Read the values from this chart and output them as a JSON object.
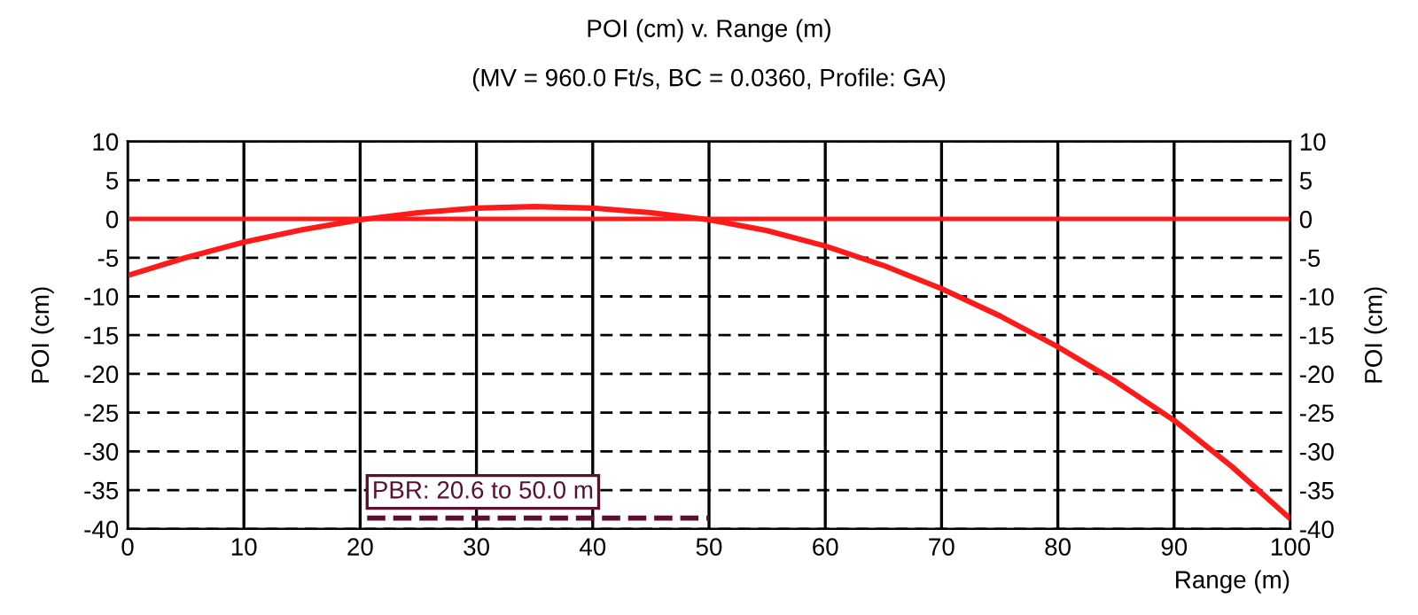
{
  "chart_data": {
    "type": "line",
    "title": "POI (cm) v. Range (m)",
    "subtitle": "(MV = 960.0 Ft/s, BC = 0.0360, Profile: GA)",
    "xlabel": "Range (m)",
    "ylabel": "POI (cm)",
    "y2label": "POI (cm)",
    "x": [
      0,
      5,
      10,
      15,
      20,
      25,
      30,
      35,
      40,
      45,
      50,
      55,
      60,
      65,
      70,
      75,
      80,
      85,
      90,
      95,
      100
    ],
    "series": [
      {
        "color": "#ff1a1a",
        "values": [
          -7.3,
          -5.0,
          -3.0,
          -1.4,
          -0.1,
          0.8,
          1.4,
          1.6,
          1.4,
          0.8,
          -0.1,
          -1.5,
          -3.5,
          -6.0,
          -9.0,
          -12.5,
          -16.5,
          -21.0,
          -26.0,
          -32.0,
          -38.7
        ]
      },
      {
        "color": "#5a1030",
        "x": [
          20.6,
          50.0
        ],
        "values": [
          -38.6,
          -38.6
        ],
        "line_style": "dashed"
      }
    ],
    "ref_lines": [
      {
        "axis": "y",
        "value": 0,
        "color": "#ff1a1a"
      }
    ],
    "annotations": [
      {
        "text": "PBR: 20.6 to 50.0 m",
        "x": 20.6,
        "y": -38.6
      }
    ],
    "xlim": [
      0,
      100
    ],
    "xticks": [
      0,
      10,
      20,
      30,
      40,
      50,
      60,
      70,
      80,
      90,
      100
    ],
    "ylim": [
      -40,
      10
    ],
    "yticks": [
      -40,
      -35,
      -30,
      -25,
      -20,
      -15,
      -10,
      -5,
      0,
      5,
      10
    ],
    "y2lim": [
      -40,
      10
    ],
    "y2ticks": [
      -40,
      -35,
      -30,
      -25,
      -20,
      -15,
      -10,
      -5,
      0,
      5,
      10
    ],
    "grid": true,
    "line_style": "solid",
    "marker": "none",
    "legend": false
  }
}
